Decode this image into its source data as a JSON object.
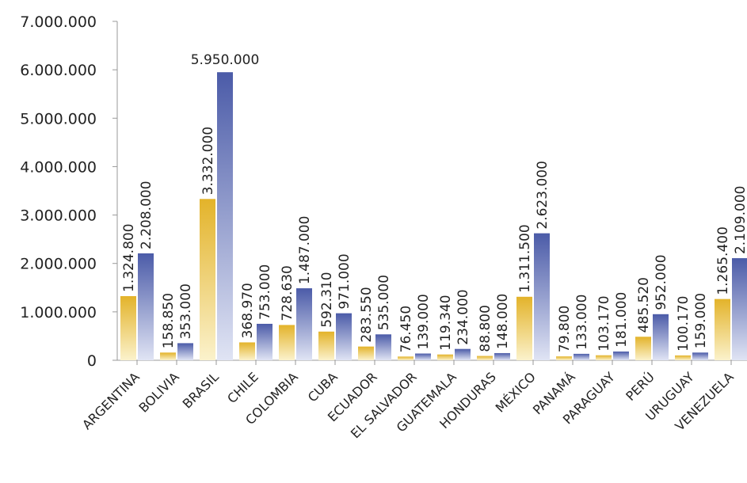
{
  "chart_data": {
    "type": "bar",
    "categories": [
      "ARGENTINA",
      "BOLIVIA",
      "BRASIL",
      "CHILE",
      "COLOMBIA",
      "CUBA",
      "ECUADOR",
      "EL SALVADOR",
      "GUATEMALA",
      "HONDURAS",
      "MÉXICO",
      "PANAMÁ",
      "PARAGUAY",
      "PERÚ",
      "URUGUAY",
      "VENEZUELA"
    ],
    "series": [
      {
        "color": "#e3b32a",
        "values": [
          1324800,
          158850,
          3332000,
          368970,
          728630,
          592310,
          283550,
          76450,
          119340,
          88800,
          1311500,
          79800,
          103170,
          485520,
          100170,
          1265400
        ],
        "value_labels": [
          "1.324.800",
          "158.850",
          "3.332.000",
          "368.970",
          "728.630",
          "592.310",
          "283.550",
          "76.450",
          "119.340",
          "88.800",
          "1.311.500",
          "79.800",
          "103.170",
          "485.520",
          "100.170",
          "1.265.400"
        ]
      },
      {
        "color": "#4b5ba8",
        "values": [
          2208000,
          353000,
          5950000,
          753000,
          1487000,
          971000,
          535000,
          139000,
          234000,
          148000,
          2623000,
          133000,
          181000,
          952000,
          159000,
          2109000
        ],
        "value_labels": [
          "2.208.000",
          "353.000",
          "5.950.000",
          "753.000",
          "1.487.000",
          "971.000",
          "535.000",
          "139.000",
          "234.000",
          "148.000",
          "2.623.000",
          "133.000",
          "181.000",
          "952.000",
          "159.000",
          "2.109.000"
        ]
      }
    ],
    "ylim": [
      0,
      7000000
    ],
    "yticks": [
      {
        "value": 0,
        "label": "0"
      },
      {
        "value": 1000000,
        "label": "1.000.000"
      },
      {
        "value": 2000000,
        "label": "2.000.000"
      },
      {
        "value": 3000000,
        "label": "3.000.000"
      },
      {
        "value": 4000000,
        "label": "4.000.000"
      },
      {
        "value": 5000000,
        "label": "5.000.000"
      },
      {
        "value": 6000000,
        "label": "6.000.000"
      },
      {
        "value": 7000000,
        "label": "7.000.000"
      }
    ],
    "grid": false
  }
}
